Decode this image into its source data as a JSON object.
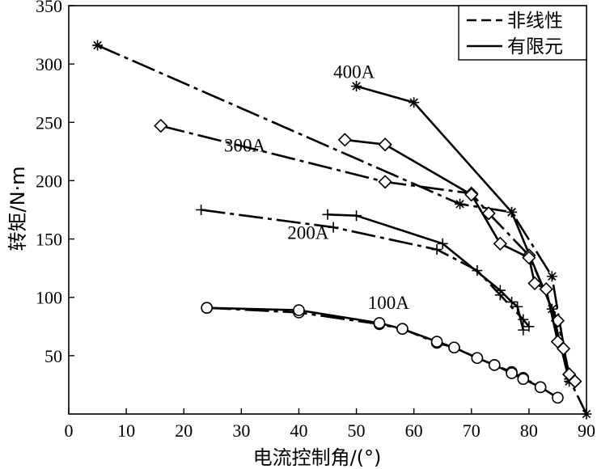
{
  "chart_data": {
    "type": "line",
    "title": "",
    "xlabel": "电流控制角/(°)",
    "ylabel": "转矩/N·m",
    "xlim": [
      0,
      90
    ],
    "ylim": [
      0,
      350
    ],
    "xticks": [
      0,
      10,
      20,
      30,
      40,
      50,
      60,
      70,
      80,
      90
    ],
    "yticks": [
      50,
      100,
      150,
      200,
      250,
      300,
      350
    ],
    "grid": false,
    "legend": {
      "position": "top-right",
      "entries": [
        {
          "label": "非线性",
          "style": "dashed"
        },
        {
          "label": "有限元",
          "style": "solid"
        }
      ]
    },
    "series_labels": [
      {
        "text": "400A",
        "x": 46,
        "y": 288
      },
      {
        "text": "300A",
        "x": 27,
        "y": 225
      },
      {
        "text": "200A",
        "x": 38,
        "y": 150
      },
      {
        "text": "100A",
        "x": 52,
        "y": 90
      }
    ],
    "series": [
      {
        "name": "400A 非线性",
        "current": "400A",
        "method": "非线性",
        "marker": "star",
        "x": [
          5,
          68,
          77,
          84,
          87,
          90
        ],
        "y": [
          316,
          180,
          173,
          118,
          30,
          0
        ]
      },
      {
        "name": "400A 有限元",
        "current": "400A",
        "method": "有限元",
        "marker": "star",
        "x": [
          50,
          60,
          77,
          84,
          87
        ],
        "y": [
          281,
          267,
          173,
          90,
          28
        ]
      },
      {
        "name": "300A 非线性",
        "current": "300A",
        "method": "非线性",
        "marker": "diamond",
        "x": [
          16,
          55,
          70,
          73,
          80,
          85,
          87,
          88
        ],
        "y": [
          247,
          199,
          189,
          172,
          136,
          80,
          34,
          28
        ]
      },
      {
        "name": "300A 有限元",
        "current": "300A",
        "method": "有限元",
        "marker": "diamond",
        "x": [
          48,
          55,
          70,
          75,
          80,
          81,
          83,
          85,
          86,
          87,
          88
        ],
        "y": [
          235,
          231,
          188,
          146,
          134,
          112,
          107,
          62,
          56,
          34,
          28
        ]
      },
      {
        "name": "200A 非线性",
        "current": "200A",
        "method": "非线性",
        "marker": "plus",
        "x": [
          23,
          46,
          64,
          71,
          75,
          79,
          80
        ],
        "y": [
          175,
          160,
          141,
          123,
          102,
          81,
          75
        ]
      },
      {
        "name": "200A 有限元",
        "current": "200A",
        "method": "有限元",
        "marker": "plus",
        "x": [
          45,
          50,
          65,
          75,
          77,
          78,
          79
        ],
        "y": [
          171,
          170,
          146,
          106,
          96,
          92,
          72
        ]
      },
      {
        "name": "100A 非线性",
        "current": "100A",
        "method": "非线性",
        "marker": "circle",
        "x": [
          24,
          40,
          54,
          58,
          64,
          67,
          71,
          74,
          77,
          79,
          82,
          85
        ],
        "y": [
          91,
          87,
          77,
          73,
          61,
          57,
          48,
          42,
          36,
          31,
          23,
          14
        ]
      },
      {
        "name": "100A 有限元",
        "current": "100A",
        "method": "有限元",
        "marker": "circle",
        "x": [
          24,
          40,
          54,
          58,
          64,
          67,
          71,
          74,
          77,
          79,
          82
        ],
        "y": [
          91,
          89,
          78,
          73,
          62,
          57,
          48,
          42,
          35,
          30,
          23
        ]
      }
    ]
  }
}
